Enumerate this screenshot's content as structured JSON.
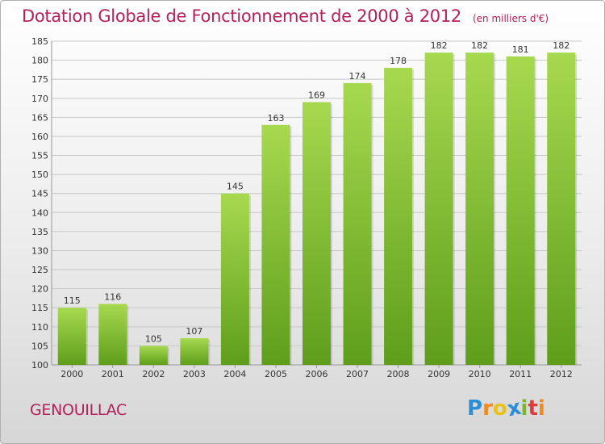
{
  "header": {
    "title": "Dotation Globale de Fonctionnement de 2000 à 2012",
    "unit": "(en milliers d'€)"
  },
  "footer": {
    "commune": "GENOUILLAC",
    "logo": {
      "letters": [
        "P",
        "r",
        "o",
        "x",
        "i",
        "t",
        "i"
      ],
      "colors": [
        "#2b8fd6",
        "#f08a1c",
        "#e8c21a",
        "#2b8fd6",
        "#7ab62a",
        "#e23a3a",
        "#f08a1c"
      ]
    }
  },
  "colors": {
    "bar_light": "#a7d94f",
    "bar_dark": "#5e9e1b",
    "grid": "#c8c8c8",
    "title": "#b3205a"
  },
  "chart_data": {
    "type": "bar",
    "title": "Dotation Globale de Fonctionnement de 2000 à 2012",
    "categories": [
      "2000",
      "2001",
      "2002",
      "2003",
      "2004",
      "2005",
      "2006",
      "2007",
      "2008",
      "2009",
      "2010",
      "2011",
      "2012"
    ],
    "values": [
      115,
      116,
      105,
      107,
      145,
      163,
      169,
      174,
      178,
      182,
      182,
      181,
      182
    ],
    "ylim": [
      100,
      185
    ],
    "yticks": [
      100,
      105,
      110,
      115,
      120,
      125,
      130,
      135,
      140,
      145,
      150,
      155,
      160,
      165,
      170,
      175,
      180,
      185
    ],
    "grid": true
  }
}
